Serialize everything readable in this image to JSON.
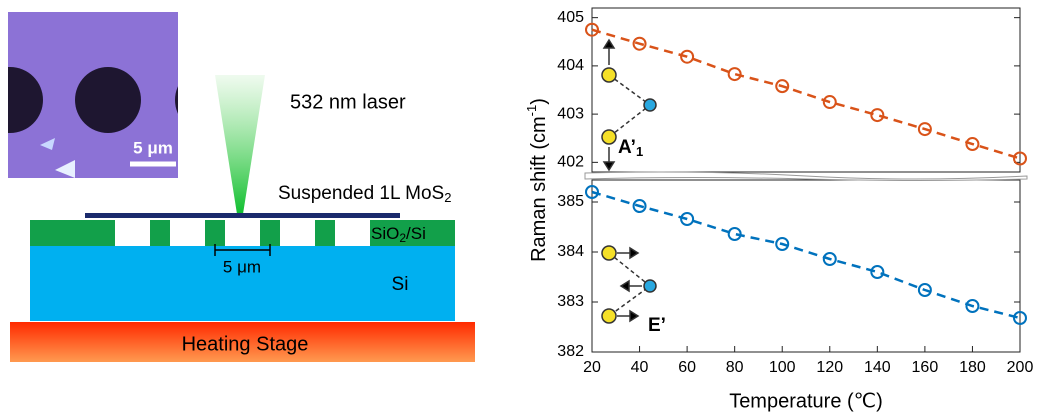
{
  "diagram": {
    "micrograph_scale": "5 μm",
    "laser": "532 nm laser",
    "layer": [
      "Suspended 1L MoS",
      "2"
    ],
    "oxide": [
      "SiO",
      "2",
      "/Si"
    ],
    "hole_scale": "5 μm",
    "substrate": "Si",
    "stage": "Heating Stage"
  },
  "chart_data": [
    {
      "type": "line",
      "annotation": [
        "A’",
        "1"
      ],
      "ylabel": [
        "Raman shift (cm",
        "-1",
        ")"
      ],
      "x": [
        20,
        40,
        60,
        80,
        100,
        120,
        140,
        160,
        180,
        200
      ],
      "series": [
        {
          "name": "A’1",
          "color": "#d95319",
          "values": [
            404.75,
            404.46,
            404.19,
            403.83,
            403.58,
            403.25,
            402.98,
            402.69,
            402.38,
            402.08
          ]
        }
      ],
      "xlim": [
        20,
        200
      ],
      "ylim": [
        401.8,
        405.2
      ],
      "yticks": [
        402,
        403,
        404,
        405
      ]
    },
    {
      "type": "line",
      "annotation": [
        "E’"
      ],
      "xlabel": "Temperature (℃)",
      "x": [
        20,
        40,
        60,
        80,
        100,
        120,
        140,
        160,
        180,
        200
      ],
      "series": [
        {
          "name": "E’",
          "color": "#0072bd",
          "values": [
            385.2,
            384.92,
            384.66,
            384.36,
            384.16,
            383.86,
            383.6,
            383.24,
            382.92,
            382.68
          ]
        }
      ],
      "xlim": [
        20,
        200
      ],
      "ylim": [
        382,
        385.44
      ],
      "xticks": [
        20,
        40,
        60,
        80,
        100,
        120,
        140,
        160,
        180,
        200
      ],
      "yticks": [
        382,
        383,
        384,
        385
      ]
    }
  ]
}
